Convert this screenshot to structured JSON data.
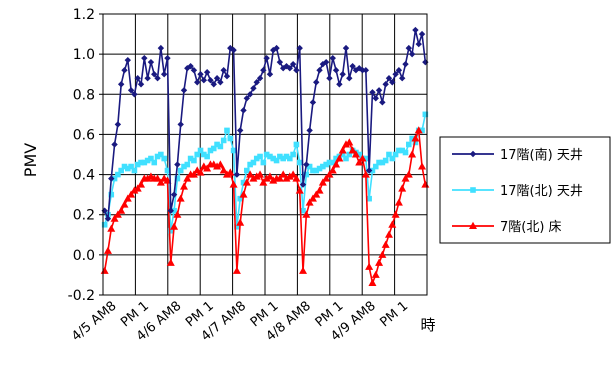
{
  "chart_data": {
    "type": "line",
    "ylabel": "PMV",
    "xlabel": "時",
    "ylim": [
      -0.2,
      1.2
    ],
    "yticks": [
      -0.2,
      0.0,
      0.2,
      0.4,
      0.6,
      0.8,
      1.0,
      1.2
    ],
    "ytick_labels": [
      "-0.2",
      "0.0",
      "0.2",
      "0.4",
      "0.6",
      "0.8",
      "1.0",
      "1.2"
    ],
    "xtick_labels": [
      "4/5 AM8",
      "PM 1",
      "4/6 AM8",
      "PM 1",
      "4/7 AM8",
      "PM 1",
      "4/8 AM8",
      "PM 1",
      "4/9 AM8",
      "PM 1"
    ],
    "grid": true,
    "legend_position": "right",
    "series": [
      {
        "name": "17階(南)  天井",
        "color": "#1a1a80",
        "marker": "diamond",
        "values": [
          0.22,
          0.18,
          0.38,
          0.55,
          0.65,
          0.85,
          0.92,
          0.97,
          0.82,
          0.8,
          0.88,
          0.85,
          0.98,
          0.88,
          0.96,
          0.9,
          0.88,
          1.03,
          0.9,
          0.98,
          0.22,
          0.3,
          0.45,
          0.65,
          0.82,
          0.93,
          0.94,
          0.92,
          0.86,
          0.9,
          0.87,
          0.91,
          0.87,
          0.85,
          0.88,
          0.86,
          0.92,
          0.89,
          1.03,
          1.02,
          0.4,
          0.62,
          0.72,
          0.78,
          0.8,
          0.83,
          0.86,
          0.88,
          0.92,
          0.98,
          0.9,
          1.02,
          1.03,
          0.96,
          0.93,
          0.94,
          0.93,
          0.95,
          0.92,
          1.03,
          0.35,
          0.45,
          0.62,
          0.76,
          0.86,
          0.92,
          0.95,
          0.96,
          0.88,
          0.98,
          0.92,
          0.85,
          0.9,
          1.03,
          0.88,
          0.94,
          0.92,
          0.93,
          0.92,
          0.92,
          0.42,
          0.81,
          0.78,
          0.82,
          0.76,
          0.85,
          0.88,
          0.86,
          0.9,
          0.92,
          0.88,
          0.95,
          1.03,
          1.0,
          1.12,
          1.05,
          1.1,
          0.96
        ]
      },
      {
        "name": "17階(北)  天井",
        "color": "#40e0ff",
        "marker": "square",
        "values": [
          0.15,
          0.2,
          0.3,
          0.38,
          0.4,
          0.42,
          0.44,
          0.43,
          0.44,
          0.42,
          0.45,
          0.46,
          0.46,
          0.47,
          0.48,
          0.46,
          0.49,
          0.5,
          0.48,
          0.42,
          0.12,
          0.22,
          0.38,
          0.42,
          0.44,
          0.45,
          0.48,
          0.47,
          0.5,
          0.52,
          0.5,
          0.49,
          0.52,
          0.53,
          0.55,
          0.54,
          0.57,
          0.62,
          0.58,
          0.52,
          0.14,
          0.28,
          0.36,
          0.42,
          0.45,
          0.46,
          0.48,
          0.49,
          0.46,
          0.5,
          0.49,
          0.48,
          0.47,
          0.49,
          0.48,
          0.49,
          0.48,
          0.5,
          0.55,
          0.46,
          0.22,
          0.4,
          0.44,
          0.42,
          0.42,
          0.43,
          0.44,
          0.45,
          0.46,
          0.46,
          0.48,
          0.49,
          0.5,
          0.48,
          0.5,
          0.52,
          0.51,
          0.5,
          0.48,
          0.48,
          0.28,
          0.42,
          0.44,
          0.46,
          0.46,
          0.47,
          0.5,
          0.48,
          0.5,
          0.52,
          0.52,
          0.51,
          0.55,
          0.58,
          0.56,
          0.62,
          0.62,
          0.7
        ]
      },
      {
        "name": "7階(北)  床",
        "color": "#ff0000",
        "marker": "triangle",
        "values": [
          -0.08,
          0.02,
          0.13,
          0.18,
          0.2,
          0.22,
          0.25,
          0.28,
          0.3,
          0.32,
          0.33,
          0.35,
          0.38,
          0.38,
          0.39,
          0.38,
          0.38,
          0.36,
          0.38,
          0.37,
          -0.04,
          0.14,
          0.2,
          0.28,
          0.34,
          0.38,
          0.4,
          0.4,
          0.42,
          0.41,
          0.44,
          0.43,
          0.45,
          0.45,
          0.44,
          0.45,
          0.42,
          0.4,
          0.41,
          0.35,
          -0.08,
          0.16,
          0.3,
          0.36,
          0.4,
          0.38,
          0.39,
          0.4,
          0.36,
          0.38,
          0.39,
          0.37,
          0.38,
          0.38,
          0.4,
          0.38,
          0.39,
          0.4,
          0.38,
          0.32,
          -0.08,
          0.2,
          0.26,
          0.28,
          0.3,
          0.32,
          0.36,
          0.38,
          0.4,
          0.42,
          0.45,
          0.48,
          0.52,
          0.55,
          0.56,
          0.52,
          0.5,
          0.46,
          0.48,
          0.4,
          -0.06,
          -0.14,
          -0.1,
          -0.04,
          0.0,
          0.05,
          0.1,
          0.15,
          0.2,
          0.26,
          0.33,
          0.38,
          0.4,
          0.5,
          0.58,
          0.62,
          0.44,
          0.35
        ]
      }
    ]
  }
}
